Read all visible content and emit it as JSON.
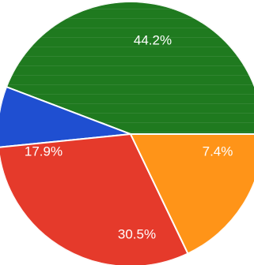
{
  "chart_data": {
    "type": "pie",
    "slices": [
      {
        "label": "44.2%",
        "value": 44.2,
        "color": "#1f7a1f"
      },
      {
        "label": "7.4%",
        "value": 7.4,
        "color": "#1f4fd1"
      },
      {
        "label": "30.5%",
        "value": 30.5,
        "color": "#e53a2b"
      },
      {
        "label": "17.9%",
        "value": 17.9,
        "color": "#ff9418"
      }
    ]
  }
}
